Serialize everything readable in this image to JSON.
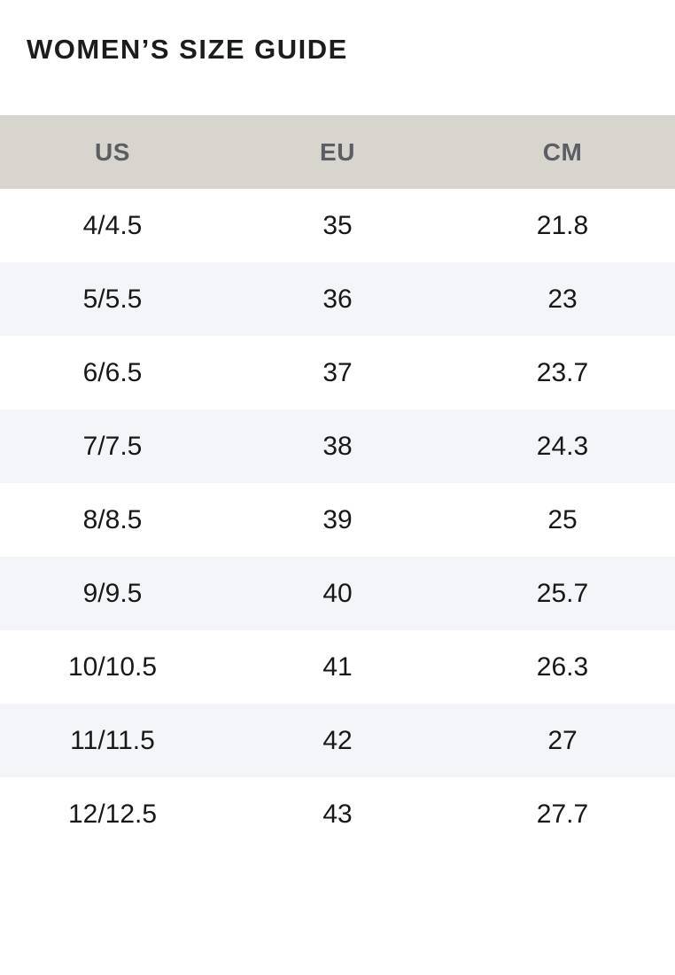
{
  "title": "WOMEN’S SIZE GUIDE",
  "table": {
    "columns": [
      "US",
      "EU",
      "CM"
    ],
    "rows": [
      {
        "us": "4/4.5",
        "eu": "35",
        "cm": "21.8"
      },
      {
        "us": "5/5.5",
        "eu": "36",
        "cm": "23"
      },
      {
        "us": "6/6.5",
        "eu": "37",
        "cm": "23.7"
      },
      {
        "us": "7/7.5",
        "eu": "38",
        "cm": "24.3"
      },
      {
        "us": "8/8.5",
        "eu": "39",
        "cm": "25"
      },
      {
        "us": "9/9.5",
        "eu": "40",
        "cm": "25.7"
      },
      {
        "us": "10/10.5",
        "eu": "41",
        "cm": "26.3"
      },
      {
        "us": "11/11.5",
        "eu": "42",
        "cm": "27"
      },
      {
        "us": "12/12.5",
        "eu": "43",
        "cm": "27.7"
      }
    ]
  },
  "colors": {
    "page_background": "#ffffff",
    "title_text": "#1b1c1e",
    "header_background": "#d8d4ce",
    "header_text": "#5b5e63",
    "row_alt_background": "#f4f5f8",
    "body_text": "#17181a"
  }
}
